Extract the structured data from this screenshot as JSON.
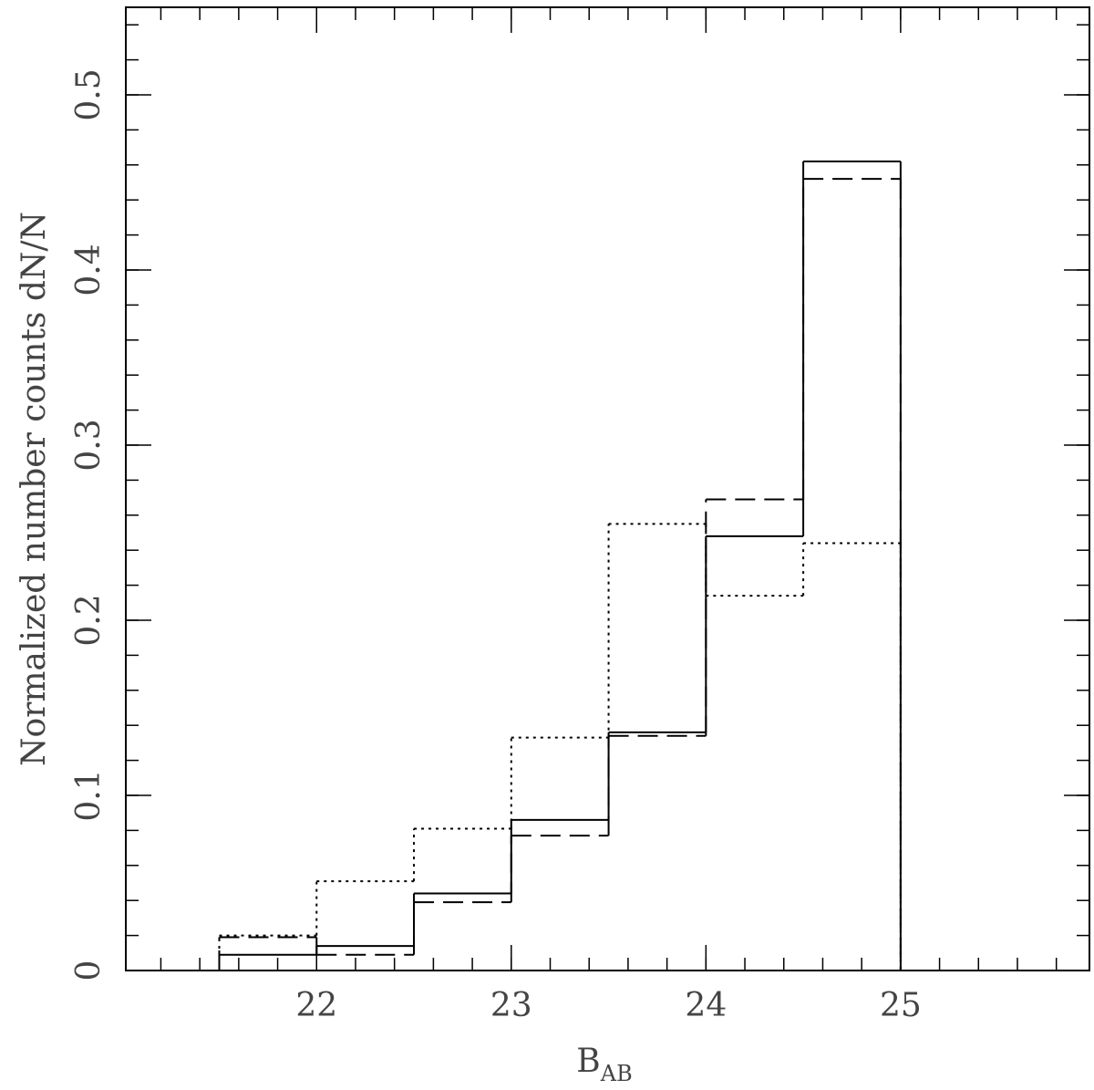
{
  "chart_data": {
    "type": "step-histogram",
    "ylabel": "Normalized number counts dN/N",
    "xlabel": {
      "main": "B",
      "sub": "AB"
    },
    "bins": [
      21.5,
      22,
      22.5,
      23,
      23.5,
      24,
      24.5,
      25
    ],
    "series": [
      {
        "color": "#000000",
        "style": "solid",
        "values": [
          0.009,
          0.014,
          0.044,
          0.086,
          0.136,
          0.248,
          0.462
        ]
      },
      {
        "color": "#000000",
        "style": "dashed",
        "values": [
          0.019,
          0.009,
          0.039,
          0.077,
          0.134,
          0.269,
          0.452
        ]
      },
      {
        "color": "#000000",
        "style": "dotted",
        "values": [
          0.02,
          0.051,
          0.081,
          0.133,
          0.255,
          0.214,
          0.244
        ]
      }
    ],
    "xlim": [
      21.02,
      25.97
    ],
    "xticks": [
      22,
      23,
      24,
      25
    ],
    "xminor_step": 0.2,
    "ylim": [
      0,
      0.55
    ],
    "yticks": [
      0,
      0.1,
      0.2,
      0.3,
      0.4,
      0.5
    ],
    "yminor_step": 0.02,
    "grid": false
  }
}
